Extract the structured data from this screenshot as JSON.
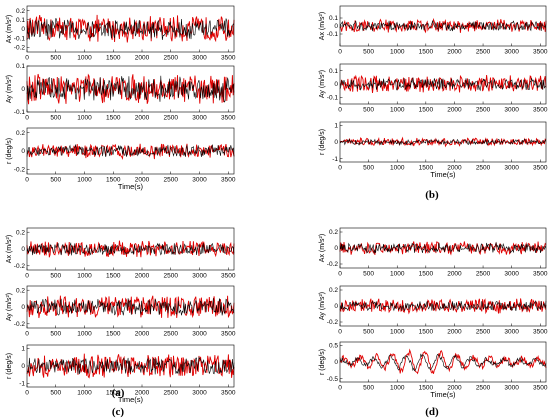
{
  "figure": {
    "panel_labels": [
      "(a)",
      "(b)",
      "(c)",
      "(d)"
    ]
  },
  "chart_data": [
    {
      "type": "line",
      "panel": "(a)",
      "subplots": [
        {
          "ylabel": "Ax (m/s²)",
          "xlabel": "",
          "x_ticks": [
            "0",
            "500",
            "1000",
            "1500",
            "2000",
            "2500",
            "3000",
            "3500"
          ],
          "xlim": [
            0,
            3600
          ],
          "ylim": [
            -0.25,
            0.25
          ],
          "y_ticks": [
            "-0.2",
            "-0.1",
            "0",
            "0.1",
            "0.2"
          ],
          "series": [
            {
              "color": "#e00000",
              "amplitude": 0.16,
              "mode": "noise"
            },
            {
              "color": "#000000",
              "amplitude": 0.13,
              "mode": "noise"
            }
          ]
        },
        {
          "ylabel": "Ay (m/s²)",
          "xlabel": "",
          "x_ticks": [
            "0",
            "500",
            "1000",
            "1500",
            "2000",
            "2500",
            "3000",
            "3500"
          ],
          "xlim": [
            0,
            3600
          ],
          "ylim": [
            -0.1,
            0.1
          ],
          "y_ticks": [
            "-0.1",
            "0",
            "0.1"
          ],
          "series": [
            {
              "color": "#e00000",
              "amplitude": 0.07,
              "mode": "noise"
            },
            {
              "color": "#000000",
              "amplitude": 0.06,
              "mode": "noise"
            }
          ]
        },
        {
          "ylabel": "r (deg/s)",
          "xlabel": "Time(s)",
          "x_ticks": [
            "0",
            "500",
            "1000",
            "1500",
            "2000",
            "2500",
            "3000",
            "3500"
          ],
          "xlim": [
            0,
            3600
          ],
          "ylim": [
            -0.25,
            0.25
          ],
          "y_ticks": [
            "-0.2",
            "0",
            "0.2"
          ],
          "series": [
            {
              "color": "#e00000",
              "amplitude": 0.09,
              "mode": "noise"
            },
            {
              "color": "#000000",
              "amplitude": 0.07,
              "mode": "noise"
            }
          ]
        }
      ]
    },
    {
      "type": "line",
      "panel": "(b)",
      "subplots": [
        {
          "ylabel": "Ax (m/s²)",
          "xlabel": "",
          "x_ticks": [
            "0",
            "500",
            "1000",
            "1500",
            "2000",
            "2500",
            "3000",
            "3500"
          ],
          "xlim": [
            0,
            3600
          ],
          "ylim": [
            -0.25,
            0.25
          ],
          "y_ticks": [
            "-0.1",
            "0",
            "0.1"
          ],
          "series": [
            {
              "color": "#e00000",
              "amplitude": 0.09,
              "mode": "noise"
            },
            {
              "color": "#000000",
              "amplitude": 0.07,
              "mode": "noise"
            }
          ]
        },
        {
          "ylabel": "Ay (m/s²)",
          "xlabel": "",
          "x_ticks": [
            "0",
            "500",
            "1000",
            "1500",
            "2000",
            "2500",
            "3000",
            "3500"
          ],
          "xlim": [
            0,
            3600
          ],
          "ylim": [
            -0.15,
            0.15
          ],
          "y_ticks": [
            "-0.1",
            "0",
            "0.1"
          ],
          "series": [
            {
              "color": "#e00000",
              "amplitude": 0.07,
              "mode": "noise"
            },
            {
              "color": "#000000",
              "amplitude": 0.05,
              "mode": "noise"
            }
          ]
        },
        {
          "ylabel": "r (deg/s)",
          "xlabel": "Time(s)",
          "x_ticks": [
            "0",
            "500",
            "1000",
            "1500",
            "2000",
            "2500",
            "3000",
            "3500"
          ],
          "xlim": [
            0,
            3600
          ],
          "ylim": [
            -1.2,
            1.2
          ],
          "y_ticks": [
            "-1",
            "0",
            "1"
          ],
          "series": [
            {
              "color": "#e00000",
              "amplitude": 0.25,
              "mode": "noise"
            },
            {
              "color": "#000000",
              "amplitude": 0.18,
              "mode": "noise"
            }
          ]
        }
      ]
    },
    {
      "type": "line",
      "panel": "(c)",
      "subplots": [
        {
          "ylabel": "Ax (m/s²)",
          "xlabel": "",
          "x_ticks": [
            "0",
            "500",
            "1000",
            "1500",
            "2000",
            "2500",
            "3000",
            "3500"
          ],
          "xlim": [
            0,
            3600
          ],
          "ylim": [
            -0.25,
            0.25
          ],
          "y_ticks": [
            "-0.2",
            "0",
            "0.2"
          ],
          "series": [
            {
              "color": "#e00000",
              "amplitude": 0.11,
              "mode": "noise"
            },
            {
              "color": "#000000",
              "amplitude": 0.08,
              "mode": "noise"
            }
          ]
        },
        {
          "ylabel": "Ay (m/s²)",
          "xlabel": "",
          "x_ticks": [
            "0",
            "500",
            "1000",
            "1500",
            "2000",
            "2500",
            "3000",
            "3500"
          ],
          "xlim": [
            0,
            3600
          ],
          "ylim": [
            -0.25,
            0.25
          ],
          "y_ticks": [
            "-0.2",
            "0",
            "0.2"
          ],
          "series": [
            {
              "color": "#e00000",
              "amplitude": 0.15,
              "mode": "noise"
            },
            {
              "color": "#000000",
              "amplitude": 0.11,
              "mode": "noise"
            }
          ]
        },
        {
          "ylabel": "r (deg/s)",
          "xlabel": "Time(s)",
          "x_ticks": [
            "0",
            "500",
            "1000",
            "1500",
            "2000",
            "2500",
            "3000",
            "3500"
          ],
          "xlim": [
            0,
            3600
          ],
          "ylim": [
            -1.2,
            1.2
          ],
          "y_ticks": [
            "-1",
            "0",
            "1"
          ],
          "series": [
            {
              "color": "#e00000",
              "amplitude": 0.75,
              "mode": "noise"
            },
            {
              "color": "#000000",
              "amplitude": 0.55,
              "mode": "noise"
            }
          ]
        }
      ]
    },
    {
      "type": "line",
      "panel": "(d)",
      "subplots": [
        {
          "ylabel": "Ax (m/s²)",
          "xlabel": "",
          "x_ticks": [
            "0",
            "500",
            "1000",
            "1500",
            "2000",
            "2500",
            "3000",
            "3500"
          ],
          "xlim": [
            0,
            3600
          ],
          "ylim": [
            -0.25,
            0.25
          ],
          "y_ticks": [
            "-0.2",
            "0",
            "0.2"
          ],
          "series": [
            {
              "color": "#e00000",
              "amplitude": 0.09,
              "mode": "noise"
            },
            {
              "color": "#000000",
              "amplitude": 0.07,
              "mode": "noise"
            }
          ]
        },
        {
          "ylabel": "Ay (m/s²)",
          "xlabel": "",
          "x_ticks": [
            "0",
            "500",
            "1000",
            "1500",
            "2000",
            "2500",
            "3000",
            "3500"
          ],
          "xlim": [
            0,
            3600
          ],
          "ylim": [
            -0.25,
            0.25
          ],
          "y_ticks": [
            "-0.2",
            "0",
            "0.2"
          ],
          "series": [
            {
              "color": "#e00000",
              "amplitude": 0.1,
              "mode": "noise"
            },
            {
              "color": "#000000",
              "amplitude": 0.07,
              "mode": "noise"
            }
          ]
        },
        {
          "ylabel": "r (deg/s)",
          "xlabel": "Time(s)",
          "x_ticks": [
            "0",
            "500",
            "1000",
            "1500",
            "2000",
            "2500",
            "3000",
            "3500"
          ],
          "xlim": [
            0,
            3600
          ],
          "ylim": [
            -0.6,
            0.6
          ],
          "y_ticks": [
            "-0.5",
            "0",
            "0.5"
          ],
          "series": [
            {
              "color": "#e00000",
              "amplitude": 0.3,
              "mode": "oscillation"
            },
            {
              "color": "#000000",
              "amplitude": 0.22,
              "mode": "oscillation"
            }
          ]
        }
      ]
    }
  ]
}
